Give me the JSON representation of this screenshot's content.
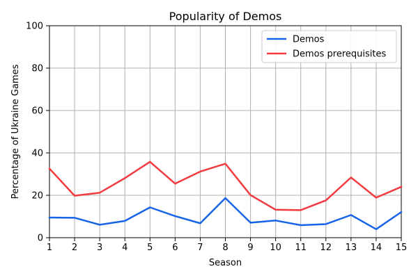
{
  "chart_data": {
    "type": "line",
    "title": "Popularity of Demos",
    "xlabel": "Season",
    "ylabel": "Percentage of Ukraine Games",
    "x": [
      1,
      2,
      3,
      4,
      5,
      6,
      7,
      8,
      9,
      10,
      11,
      12,
      13,
      14,
      15
    ],
    "x_ticks": [
      "1",
      "2",
      "3",
      "4",
      "5",
      "6",
      "7",
      "8",
      "9",
      "10",
      "11",
      "12",
      "13",
      "14",
      "15"
    ],
    "y_ticks": [
      "0",
      "20",
      "40",
      "60",
      "80",
      "100"
    ],
    "xlim": [
      1,
      15
    ],
    "ylim": [
      0,
      100
    ],
    "grid": true,
    "legend_position": "top-right",
    "series": [
      {
        "name": "Demos",
        "color": "#1764e8",
        "values": [
          9.5,
          9.4,
          6.1,
          7.9,
          14.3,
          10.2,
          6.8,
          18.7,
          7.1,
          8.1,
          5.9,
          6.4,
          10.7,
          4.0,
          12.1
        ]
      },
      {
        "name": "Demos prerequisites",
        "color": "#f23a3f",
        "values": [
          32.6,
          19.8,
          21.2,
          28.1,
          35.8,
          25.5,
          31.2,
          34.9,
          20.1,
          13.2,
          13.0,
          17.6,
          28.4,
          18.9,
          24.0
        ]
      }
    ]
  }
}
